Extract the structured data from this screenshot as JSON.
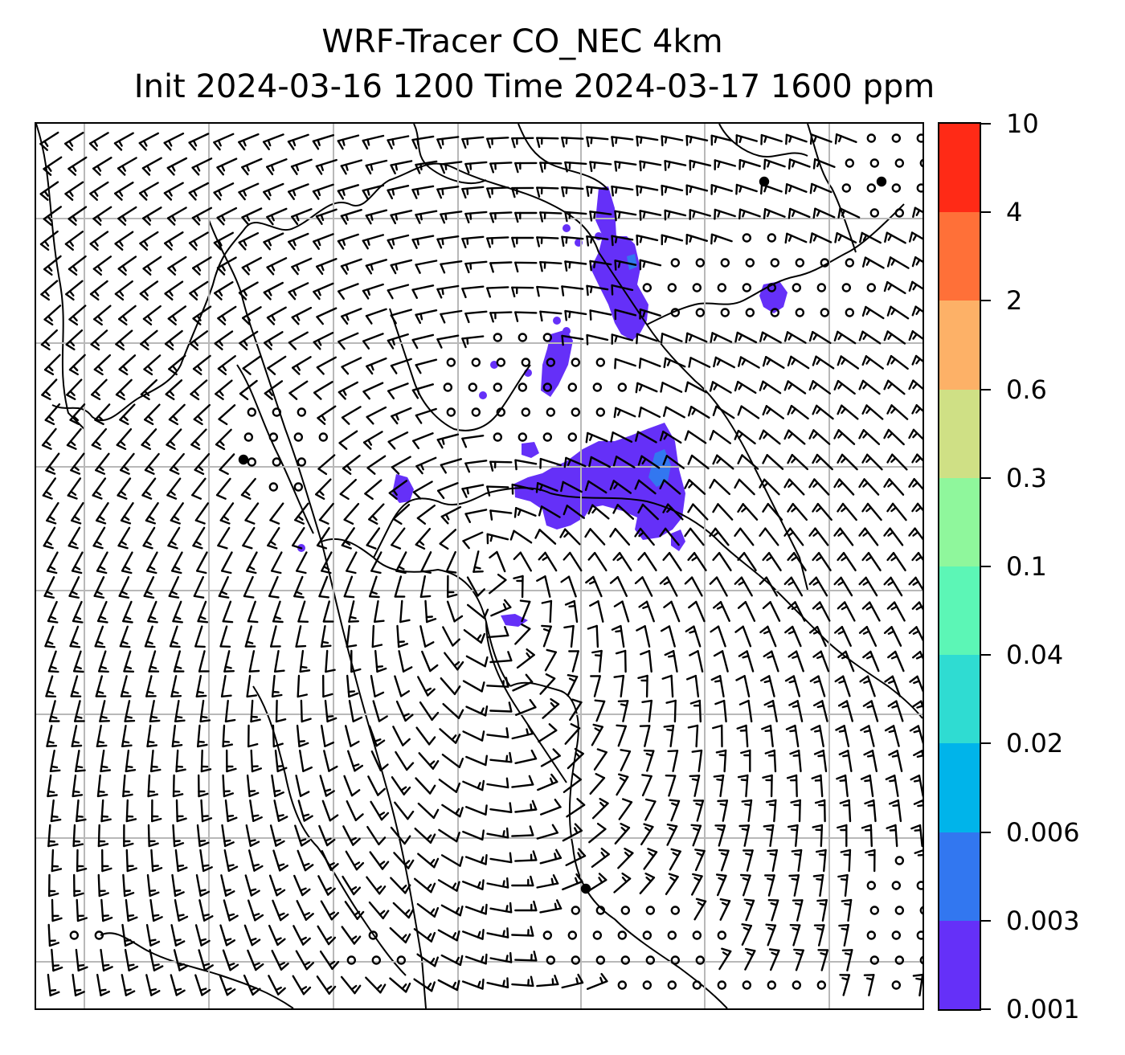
{
  "title": {
    "line1": "WRF-Tracer CO_NEC 4km",
    "line2": "Init 2024-03-16 1200 Time 2024-03-17 1600 ppm"
  },
  "colorbar": {
    "tick_labels": [
      "0.001",
      "0.003",
      "0.006",
      "0.02",
      "0.04",
      "0.1",
      "0.3",
      "0.6",
      "2",
      "4",
      "10"
    ],
    "colors": [
      "#6530f8",
      "#3277f0",
      "#00b4ea",
      "#2fdcd2",
      "#5cf6b6",
      "#8ff79c",
      "#cfe085",
      "#fdb167",
      "#ff7038",
      "#ff2a16"
    ]
  },
  "map": {
    "overlay": "wind barbs",
    "calm_marker": "circle",
    "gridlines": true,
    "tracer_color": "#6530f8",
    "tracer_core_color": "#3277f0"
  }
}
